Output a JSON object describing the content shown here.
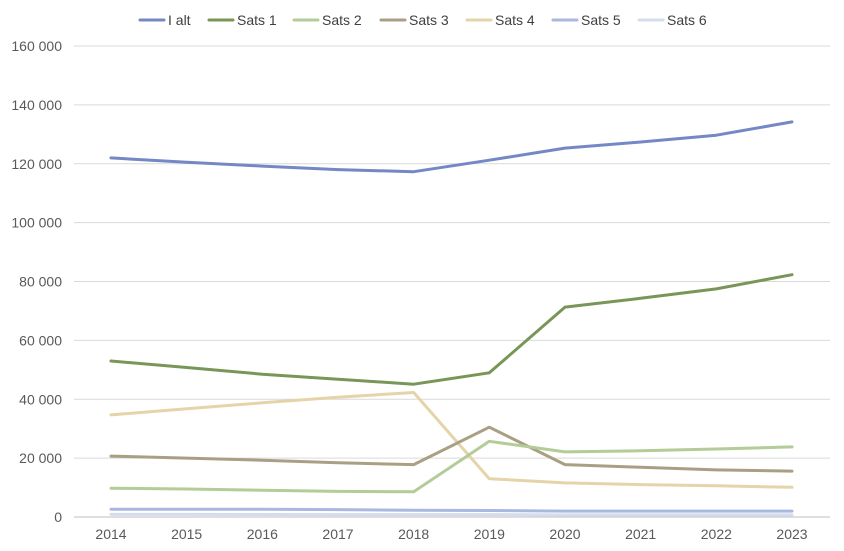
{
  "chart_data": {
    "type": "line",
    "title": "",
    "xlabel": "",
    "ylabel": "",
    "x": [
      "2014",
      "2015",
      "2016",
      "2017",
      "2018",
      "2019",
      "2020",
      "2021",
      "2022",
      "2023"
    ],
    "ylim": [
      0,
      160000
    ],
    "yticks": [
      0,
      20000,
      40000,
      60000,
      80000,
      100000,
      120000,
      140000,
      160000
    ],
    "ytick_labels": [
      "0",
      "20 000",
      "40 000",
      "60 000",
      "80 000",
      "100 000",
      "120 000",
      "140 000",
      "160 000"
    ],
    "grid": true,
    "legend_position": "top",
    "series": [
      {
        "name": "I alt",
        "color": "#7587C5",
        "values": [
          122000,
          120500,
          119200,
          118000,
          117300,
          121200,
          125300,
          127400,
          129700,
          134200
        ]
      },
      {
        "name": "Sats 1",
        "color": "#779657",
        "values": [
          53000,
          50800,
          48500,
          46800,
          45100,
          49000,
          71300,
          74300,
          77500,
          82300
        ]
      },
      {
        "name": "Sats 2",
        "color": "#B3CC98",
        "values": [
          9800,
          9500,
          9100,
          8700,
          8600,
          25700,
          22100,
          22500,
          23100,
          23800
        ]
      },
      {
        "name": "Sats 3",
        "color": "#A99F83",
        "values": [
          20700,
          20000,
          19300,
          18400,
          17800,
          30500,
          17800,
          16900,
          16000,
          15600
        ]
      },
      {
        "name": "Sats 4",
        "color": "#E5D4A9",
        "values": [
          34700,
          36800,
          38800,
          40700,
          42300,
          13000,
          11600,
          11000,
          10600,
          10100
        ]
      },
      {
        "name": "Sats 5",
        "color": "#A9B8E0",
        "values": [
          2600,
          2600,
          2600,
          2500,
          2300,
          2200,
          2000,
          2000,
          2000,
          2000
        ]
      },
      {
        "name": "Sats 6",
        "color": "#D6DCEF",
        "values": [
          900,
          900,
          850,
          800,
          800,
          800,
          700,
          700,
          700,
          700
        ]
      }
    ]
  }
}
